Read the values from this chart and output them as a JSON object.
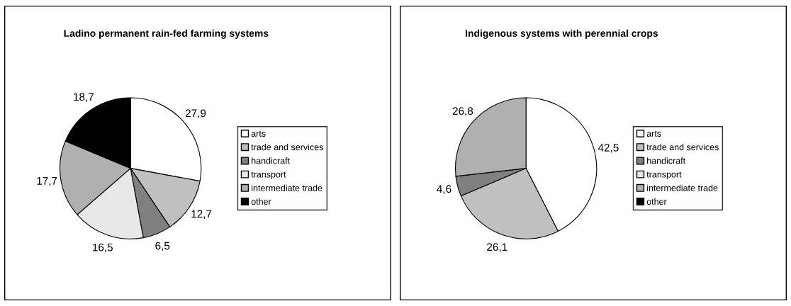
{
  "chart_data": [
    {
      "type": "pie",
      "title": "Ladino permanent rain-fed farming systems",
      "categories": [
        "arts",
        "trade and services",
        "handicraft",
        "transport",
        "intermediate trade",
        "other"
      ],
      "values": [
        27.9,
        12.7,
        6.5,
        16.5,
        17.7,
        18.7
      ],
      "value_labels": [
        "27,9",
        "12,7",
        "6,5",
        "16,5",
        "17,7",
        "18,7"
      ],
      "colors": [
        "#ffffff",
        "#c0c0c0",
        "#808080",
        "#e8e8e8",
        "#b0b0b0",
        "#000000"
      ],
      "legend": "right"
    },
    {
      "type": "pie",
      "title": "Indigenous systems with perennial crops",
      "categories": [
        "arts",
        "trade and services",
        "handicraft",
        "transport",
        "intermediate trade",
        "other"
      ],
      "values": [
        42.5,
        26.1,
        4.6,
        0,
        26.8,
        0
      ],
      "value_labels": [
        "42,5",
        "26,1",
        "4,6",
        null,
        "26,8",
        null
      ],
      "colors": [
        "#ffffff",
        "#c0c0c0",
        "#808080",
        "#e8e8e8",
        "#b0b0b0",
        "#000000"
      ],
      "legend": "right"
    }
  ]
}
